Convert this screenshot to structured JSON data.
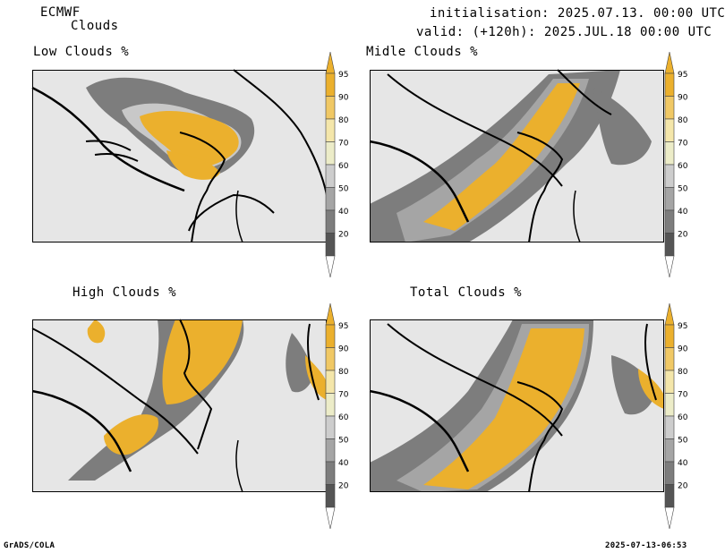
{
  "header": {
    "model": "ECMWF",
    "product": "Clouds",
    "init": "initialisation: 2025.07.13. 00:00 UTC",
    "valid": "valid: (+120h): 2025.JUL.18 00:00 UTC"
  },
  "panels": [
    {
      "id": "low",
      "title": "Low Clouds %"
    },
    {
      "id": "middle",
      "title": "Midle Clouds %"
    },
    {
      "id": "high",
      "title": "High Clouds %"
    },
    {
      "id": "total",
      "title": "Total Clouds %"
    }
  ],
  "colorbar": {
    "levels": [
      "95",
      "90",
      "80",
      "70",
      "60",
      "50",
      "40",
      "20"
    ],
    "colors": [
      "#ebb02d",
      "#f0c865",
      "#f4e6aa",
      "#ececc8",
      "#cdcdcd",
      "#a5a5a5",
      "#7d7d7d",
      "#555555"
    ]
  },
  "footer": {
    "left": "GrADS/COLA",
    "right": "2025-07-13-06:53"
  }
}
